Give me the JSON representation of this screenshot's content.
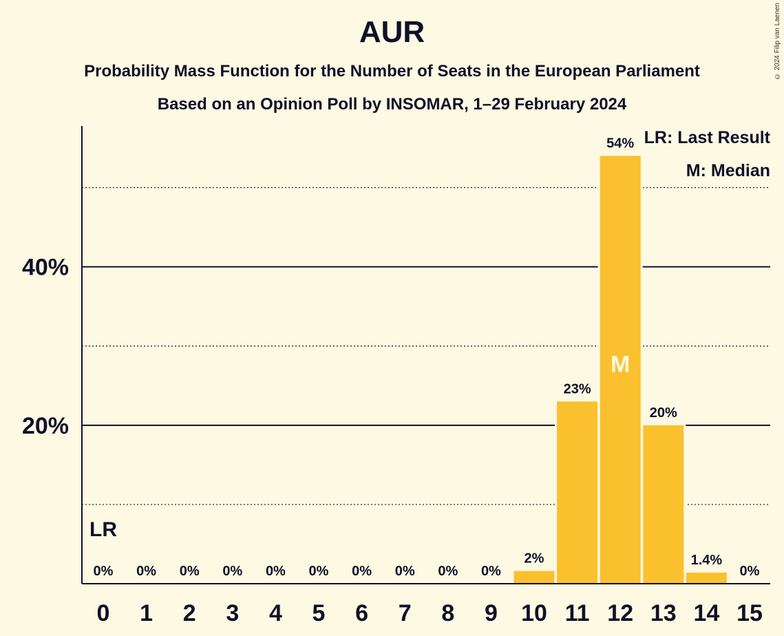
{
  "chart_data": {
    "type": "bar",
    "title": "AUR",
    "subtitle": "Probability Mass Function for the Number of Seats in the European Parliament",
    "subtitle2": "Based on an Opinion Poll by INSOMAR, 1–29 February 2024",
    "copyright": "© 2024 Filip van Laenen",
    "categories": [
      "0",
      "1",
      "2",
      "3",
      "4",
      "5",
      "6",
      "7",
      "8",
      "9",
      "10",
      "11",
      "12",
      "13",
      "14",
      "15"
    ],
    "values": [
      0,
      0,
      0,
      0,
      0,
      0,
      0,
      0,
      0,
      0,
      1.6,
      23,
      54,
      20,
      1.4,
      0
    ],
    "data_labels": [
      "0%",
      "0%",
      "0%",
      "0%",
      "0%",
      "0%",
      "0%",
      "0%",
      "0%",
      "0%",
      "2%",
      "23%",
      "54%",
      "20%",
      "1.4%",
      "0%"
    ],
    "ylim": [
      0,
      59
    ],
    "y_ticks": [
      20,
      40
    ],
    "y_tick_labels": [
      "20%",
      "40%"
    ],
    "minor_grid": [
      10,
      30,
      50
    ],
    "last_result_index": 0,
    "last_result_label": "LR",
    "median_index": 12,
    "median_label": "M",
    "legend": {
      "lr": "LR: Last Result",
      "m": "M: Median"
    },
    "colors": {
      "bar": "#FBC02D",
      "background": "#FEF9E2",
      "text": "#10102a"
    }
  }
}
